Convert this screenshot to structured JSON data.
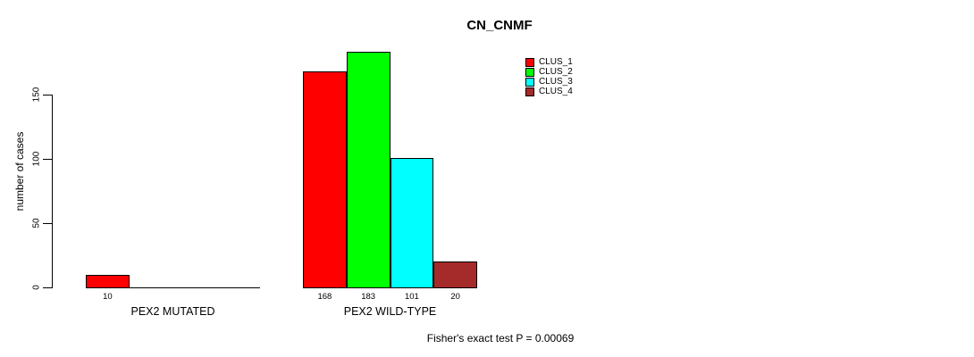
{
  "title": "CN_CNMF",
  "ylabel": "number of cases",
  "annotation": "Fisher's exact test P = 0.00069",
  "legend": {
    "items": [
      {
        "label": "CLUS_1",
        "color": "#ff0000"
      },
      {
        "label": "CLUS_2",
        "color": "#00ff00"
      },
      {
        "label": "CLUS_3",
        "color": "#00ffff"
      },
      {
        "label": "CLUS_4",
        "color": "#a52a2a"
      }
    ]
  },
  "chart_data": {
    "type": "bar",
    "title": "CN_CNMF",
    "xlabel": "",
    "ylabel": "number of cases",
    "categories": [
      "PEX2 MUTATED",
      "PEX2 WILD-TYPE"
    ],
    "series": [
      {
        "name": "CLUS_1",
        "color": "#ff0000",
        "values": [
          10,
          168
        ]
      },
      {
        "name": "CLUS_2",
        "color": "#00ff00",
        "values": [
          0,
          183
        ]
      },
      {
        "name": "CLUS_3",
        "color": "#00ffff",
        "values": [
          0,
          101
        ]
      },
      {
        "name": "CLUS_4",
        "color": "#a52a2a",
        "values": [
          0,
          20
        ]
      }
    ],
    "bar_value_labels": [
      [
        "10",
        "",
        "",
        ""
      ],
      [
        "168",
        "183",
        "101",
        "20"
      ]
    ],
    "yticks": [
      0,
      50,
      100,
      150
    ],
    "ylim": [
      0,
      183
    ],
    "grid": false,
    "legend_position": "top-right",
    "legend_entries": [
      "CLUS_1",
      "CLUS_2",
      "CLUS_3",
      "CLUS_4"
    ],
    "annotation": "Fisher's exact test P = 0.00069"
  }
}
